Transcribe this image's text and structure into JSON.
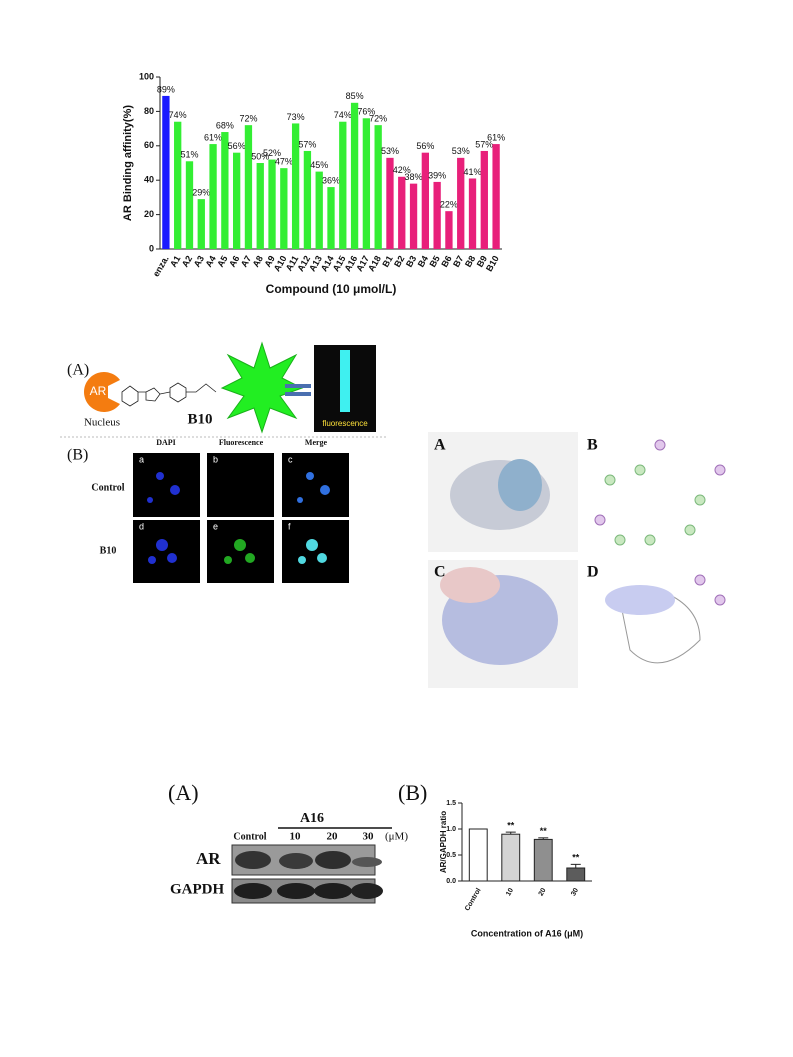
{
  "chart_data": [
    {
      "type": "bar",
      "ylabel": "AR Binding affinity(%)",
      "xlabel": "Compound (10 μmol/L)",
      "categories": [
        "enza.",
        "A1",
        "A2",
        "A3",
        "A4",
        "A5",
        "A6",
        "A7",
        "A8",
        "A9",
        "A10",
        "A11",
        "A12",
        "A13",
        "A14",
        "A15",
        "A16",
        "A17",
        "A18",
        "B1",
        "B2",
        "B3",
        "B4",
        "B5",
        "B6",
        "B7",
        "B8",
        "B9",
        "B10"
      ],
      "values": [
        89,
        74,
        51,
        29,
        61,
        68,
        56,
        72,
        50,
        52,
        47,
        73,
        57,
        45,
        36,
        74,
        85,
        76,
        72,
        53,
        42,
        38,
        56,
        39,
        22,
        53,
        41,
        57,
        61
      ],
      "value_labels": [
        "89%",
        "74%",
        "51%",
        "29%",
        "61%",
        "68%",
        "56%",
        "72%",
        "50%",
        "52%",
        "47%",
        "73%",
        "57%",
        "45%",
        "36%",
        "74%",
        "85%",
        "76%",
        "72%",
        "53%",
        "42%",
        "38%",
        "56%",
        "39%",
        "22%",
        "53%",
        "41%",
        "57%",
        "61%"
      ],
      "colors": [
        "#1a1aff",
        "#33ee33",
        "#33ee33",
        "#33ee33",
        "#33ee33",
        "#33ee33",
        "#33ee33",
        "#33ee33",
        "#33ee33",
        "#33ee33",
        "#33ee33",
        "#33ee33",
        "#33ee33",
        "#33ee33",
        "#33ee33",
        "#33ee33",
        "#33ee33",
        "#33ee33",
        "#33ee33",
        "#e8207a",
        "#e8207a",
        "#e8207a",
        "#e8207a",
        "#e8207a",
        "#e8207a",
        "#e8207a",
        "#e8207a",
        "#e8207a",
        "#e8207a"
      ],
      "ylim": [
        0,
        100
      ],
      "yticks": [
        0,
        20,
        40,
        60,
        80,
        100
      ]
    },
    {
      "type": "bar",
      "ylabel": "AR/GAPDH ratio",
      "xlabel": "Concentration of A16 (μM)",
      "categories": [
        "Control",
        "10",
        "20",
        "30"
      ],
      "values": [
        1.0,
        0.9,
        0.8,
        0.25
      ],
      "errors": [
        0,
        0.04,
        0.03,
        0.07
      ],
      "annotations": [
        null,
        "**",
        "**",
        "**"
      ],
      "colors": [
        "#ffffff",
        "#d4d4d4",
        "#8f8f8f",
        "#5c5c5c"
      ],
      "ylim": [
        0,
        1.5
      ],
      "yticks": [
        {
          "value": 0,
          "label": "0.0"
        },
        {
          "value": 0.5,
          "label": "0.5"
        },
        {
          "value": 1.0,
          "label": "1.0"
        },
        {
          "value": 1.5,
          "label": "1.5"
        }
      ]
    }
  ],
  "figure_fluorescence": {
    "panel_a": "(A)",
    "ar": "AR",
    "nucleus": "Nucleus",
    "compound": "B10",
    "fluorescence": "fluorescence",
    "panel_b": "(B)",
    "columns": [
      "DAPI",
      "Fluorescence",
      "Merge"
    ],
    "rows": [
      "Control",
      "B10"
    ],
    "cells": [
      "a",
      "b",
      "c",
      "d",
      "e",
      "f"
    ]
  },
  "figure_docking": {
    "panels": [
      "A",
      "B",
      "C",
      "D"
    ]
  },
  "figure_western": {
    "panel_a": "(A)",
    "compound": "A16",
    "lanes": [
      "Control",
      "10",
      "20",
      "30"
    ],
    "unit": "(μM)",
    "bands": [
      "AR",
      "GAPDH"
    ],
    "panel_b": "(B)"
  }
}
